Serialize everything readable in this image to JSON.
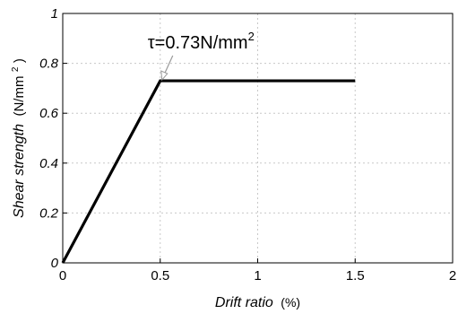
{
  "chart_data": {
    "type": "line",
    "xlabel": "Drift ratio",
    "xlabel_unit": "(%)",
    "ylabel": "Shear strength",
    "ylabel_unit": "(N/mm",
    "ylabel_unit_sup": "2",
    "ylabel_unit_close": ")",
    "xlim": [
      0,
      2
    ],
    "ylim": [
      0,
      1
    ],
    "grid": true,
    "x_ticks": [
      "0",
      "0.5",
      "1",
      "1.5",
      "2"
    ],
    "y_ticks": [
      "0",
      "0.2",
      "0.4",
      "0.6",
      "0.8",
      "1"
    ],
    "series": [
      {
        "x": [
          0,
          0.5,
          1.5
        ],
        "y": [
          0,
          0.73,
          0.73
        ]
      }
    ],
    "annotations": [
      {
        "text": "τ=0.73N/mm",
        "sup": "2",
        "x": 0.5,
        "y": 0.73
      }
    ],
    "colors": {
      "line": "#000000",
      "grid": "#c8c8c8",
      "arrow": "#999999"
    }
  }
}
